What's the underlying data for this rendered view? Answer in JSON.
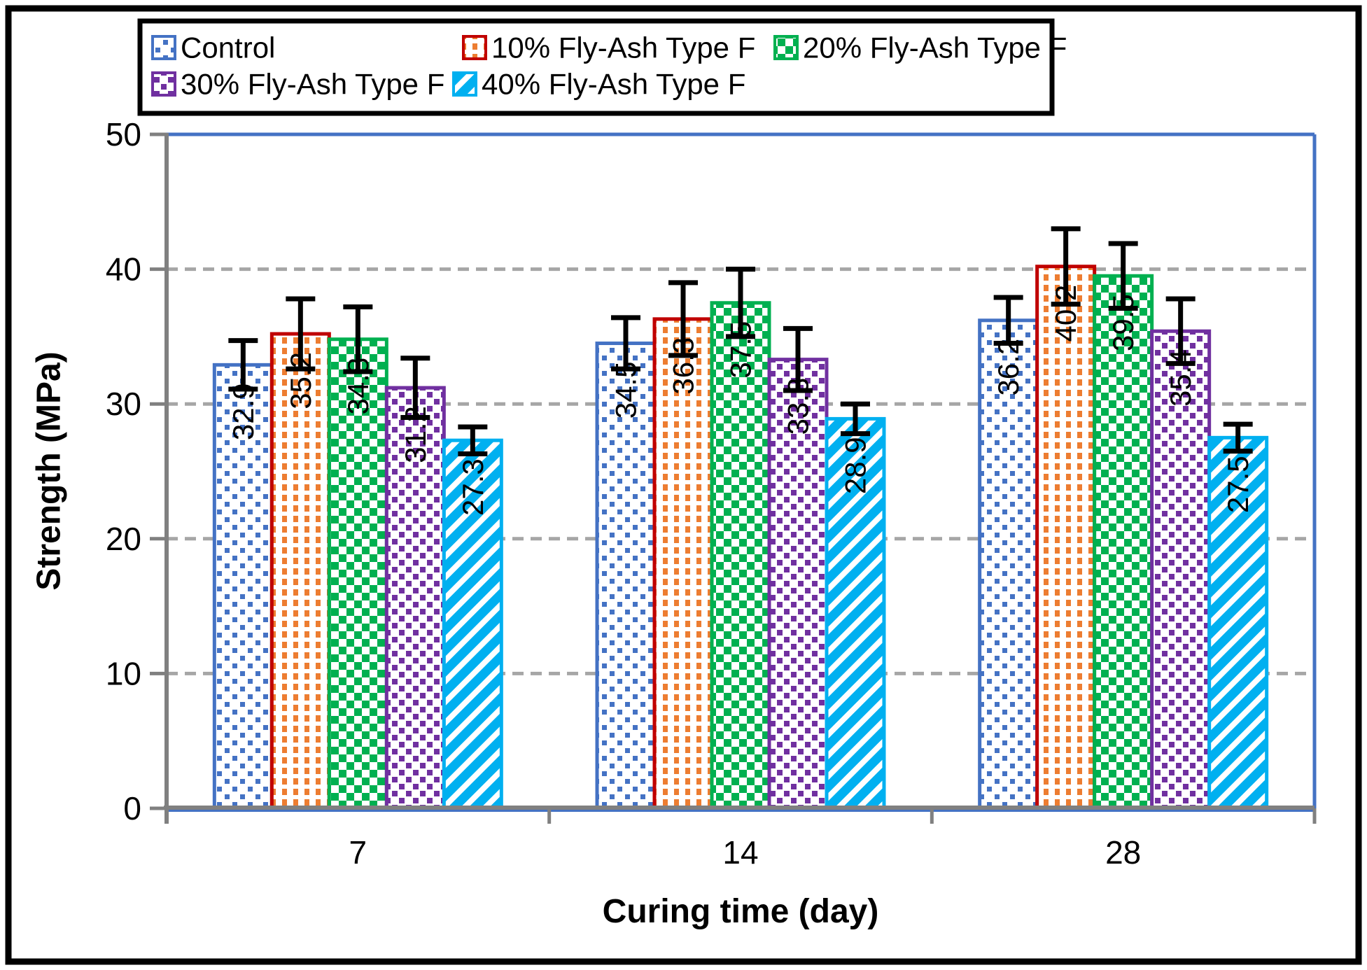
{
  "chart_data": {
    "type": "bar",
    "title": "",
    "xlabel": "Curing time (day)",
    "ylabel": "Strength (MPa)",
    "categories": [
      "7",
      "14",
      "28"
    ],
    "series": [
      {
        "name": "Control",
        "values": [
          32.9,
          34.5,
          36.2
        ],
        "errors": [
          1.8,
          1.9,
          1.7
        ],
        "border": "#4472C4",
        "fill": "#4472C4",
        "pattern": "pat-control",
        "pattern_desc": "sparse blue square dots on white"
      },
      {
        "name": "10% Fly-Ash Type F",
        "values": [
          35.2,
          36.3,
          40.2
        ],
        "errors": [
          2.6,
          2.7,
          2.8
        ],
        "border": "#C00000",
        "fill": "#ED7D31",
        "pattern": "pat-fa10",
        "pattern_desc": "dense orange square dots on white, dark red border"
      },
      {
        "name": "20% Fly-Ash Type F",
        "values": [
          34.8,
          37.5,
          39.5
        ],
        "errors": [
          2.4,
          2.5,
          2.4
        ],
        "border": "#00B050",
        "fill": "#00B050",
        "pattern": "pat-fa20",
        "pattern_desc": "green checkerboard"
      },
      {
        "name": "30% Fly-Ash Type F",
        "values": [
          31.2,
          33.3,
          35.4
        ],
        "errors": [
          2.2,
          2.3,
          2.4
        ],
        "border": "#7030A0",
        "fill": "#7030A0",
        "pattern": "pat-fa30",
        "pattern_desc": "purple dashed upward-diagonal stripes"
      },
      {
        "name": "40% Fly-Ash Type F",
        "values": [
          27.3,
          28.9,
          27.5
        ],
        "errors": [
          1.0,
          1.1,
          1.0
        ],
        "border": "#00B0F0",
        "fill": "#00B0F0",
        "pattern": "pat-fa40",
        "pattern_desc": "thick cyan upward-diagonal stripes"
      }
    ],
    "ylim": [
      0,
      50
    ],
    "yticks": [
      0,
      10,
      20,
      30,
      40,
      50
    ],
    "grid": "horizontal-dashed",
    "legend_position": "top",
    "error_bars": "symmetric, black caps",
    "colors": {
      "plot_border": "#4472C4",
      "axis_line": "#808080",
      "gridline": "#A6A6A6",
      "error_bar": "#000000",
      "data_label": "#000000",
      "frame": "#000000",
      "background": "#FFFFFF"
    }
  }
}
